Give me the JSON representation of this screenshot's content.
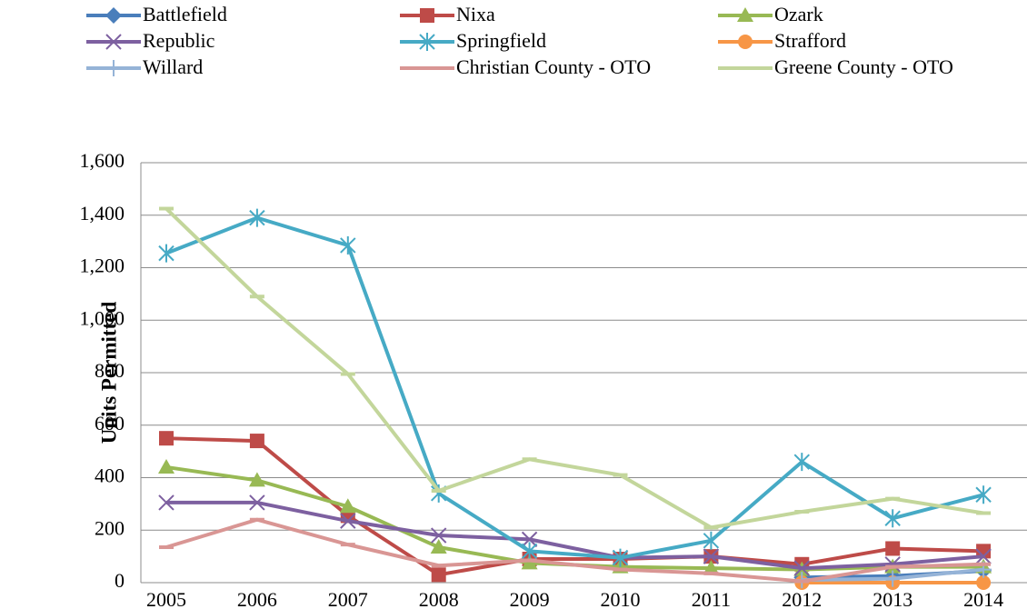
{
  "chart_data": {
    "type": "line",
    "y_label": "Units Permitted",
    "categories": [
      "2005",
      "2006",
      "2007",
      "2008",
      "2009",
      "2010",
      "2011",
      "2012",
      "2013",
      "2014"
    ],
    "ylim": [
      0,
      1600
    ],
    "yticks": [
      0,
      200,
      400,
      600,
      800,
      {
        "value": 1000,
        "label": "1,000"
      },
      {
        "value": 1200,
        "label": "1,200"
      },
      {
        "value": 1400,
        "label": "1,400"
      },
      {
        "value": 1600,
        "label": "1,600"
      }
    ],
    "grid": true,
    "legend": "top",
    "series": [
      {
        "name": "Battlefield",
        "color": "#4a7ebb",
        "marker": "diamond",
        "values": [
          null,
          null,
          null,
          null,
          null,
          null,
          null,
          20,
          25,
          45
        ]
      },
      {
        "name": "Nixa",
        "color": "#be4b48",
        "marker": "square",
        "values": [
          550,
          540,
          255,
          30,
          90,
          90,
          100,
          70,
          130,
          120
        ]
      },
      {
        "name": "Ozark",
        "color": "#98b954",
        "marker": "triangle",
        "values": [
          440,
          390,
          290,
          135,
          75,
          60,
          55,
          50,
          60,
          60
        ]
      },
      {
        "name": "Republic",
        "color": "#7d60a0",
        "marker": "x",
        "values": [
          305,
          305,
          235,
          180,
          165,
          95,
          100,
          55,
          70,
          100
        ]
      },
      {
        "name": "Springfield",
        "color": "#46aac5",
        "marker": "star",
        "values": [
          1255,
          1390,
          1285,
          340,
          120,
          95,
          160,
          460,
          245,
          335
        ]
      },
      {
        "name": "Strafford",
        "color": "#f79646",
        "marker": "circle",
        "values": [
          null,
          null,
          null,
          null,
          null,
          null,
          null,
          0,
          0,
          0
        ]
      },
      {
        "name": "Willard",
        "color": "#95b3d7",
        "marker": "plus",
        "values": [
          null,
          null,
          null,
          null,
          null,
          null,
          null,
          10,
          15,
          50
        ]
      },
      {
        "name": "Christian County - OTO",
        "color": "#d99694",
        "marker": "dash",
        "values": [
          135,
          240,
          145,
          65,
          85,
          50,
          35,
          5,
          60,
          70
        ]
      },
      {
        "name": "Greene County - OTO",
        "color": "#c3d69b",
        "marker": "dash",
        "values": [
          1425,
          1090,
          795,
          350,
          470,
          410,
          210,
          270,
          320,
          265
        ]
      }
    ]
  }
}
